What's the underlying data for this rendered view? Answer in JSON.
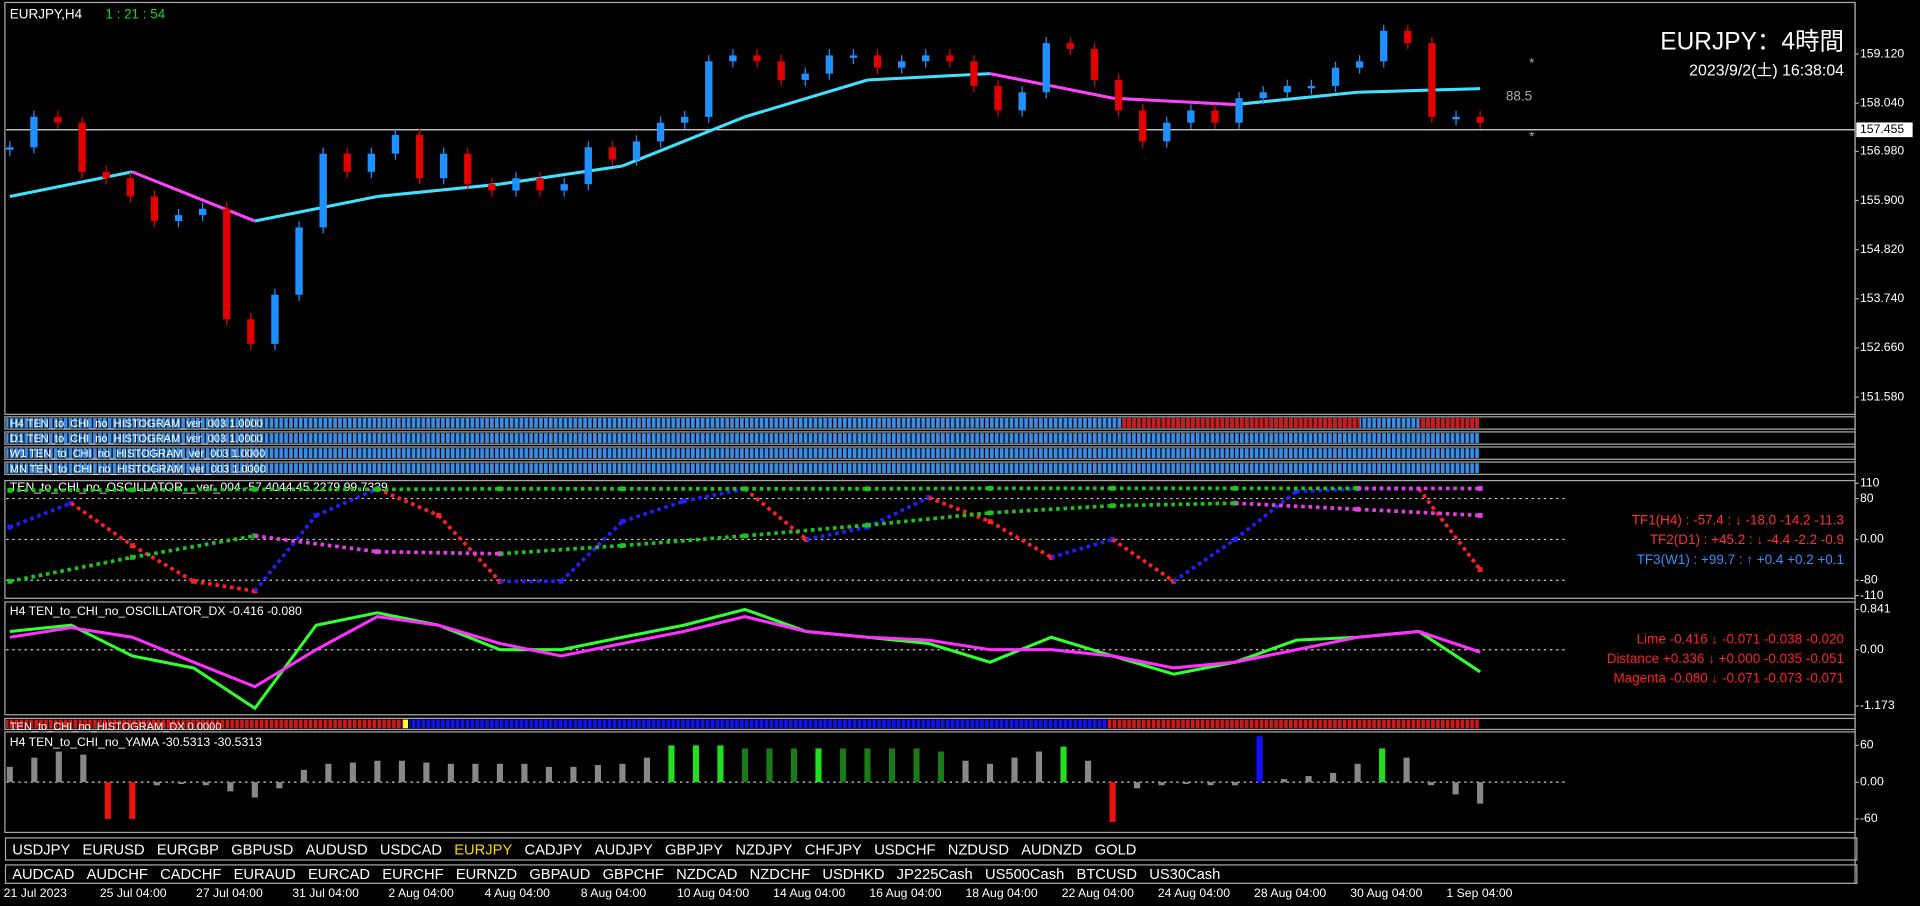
{
  "header": {
    "symbol": "EURJPY,H4",
    "timer": "1 : 21 : 54",
    "title": "EURJPY：4時間",
    "datetime": "2023/9/2(土) 16:38:04"
  },
  "price_chart": {
    "ylim": [
      151.2,
      160.2
    ],
    "yticks": [
      {
        "value": 159.12,
        "label": "159.120"
      },
      {
        "value": 158.04,
        "label": "158.040"
      },
      {
        "value": 156.98,
        "label": "156.980"
      },
      {
        "value": 155.9,
        "label": "155.900"
      },
      {
        "value": 154.82,
        "label": "154.820"
      },
      {
        "value": 153.74,
        "label": "153.740"
      },
      {
        "value": 152.66,
        "label": "152.660"
      },
      {
        "value": 151.58,
        "label": "151.580"
      }
    ],
    "current": {
      "value": 157.455,
      "label": "157.455"
    },
    "annotations": [
      "88.5",
      "*",
      "*"
    ],
    "candle_colors": {
      "up": "#1e90ff",
      "down": "#e00000"
    },
    "closes": [
      157.07,
      157.74,
      157.61,
      156.53,
      156.39,
      155.99,
      155.45,
      155.58,
      155.72,
      153.29,
      152.75,
      153.83,
      155.31,
      156.93,
      156.53,
      156.93,
      157.34,
      156.39,
      156.93,
      156.26,
      156.12,
      156.39,
      156.12,
      156.26,
      157.07,
      156.8,
      157.2,
      157.61,
      157.74,
      158.96,
      159.09,
      158.96,
      158.55,
      158.69,
      159.09,
      159.09,
      158.82,
      158.96,
      159.09,
      158.96,
      158.42,
      157.88,
      158.28,
      159.36,
      159.23,
      158.55,
      157.88,
      157.2,
      157.61,
      157.88,
      157.61,
      158.15,
      158.28,
      158.42,
      158.42,
      158.82,
      158.96,
      159.63,
      159.36,
      157.74,
      157.74,
      157.61
    ],
    "ma": {
      "colors": {
        "rise": "#40e0ff",
        "fall": "#ff40ff"
      },
      "values": [
        155.99,
        156.53,
        155.45,
        155.99,
        156.26,
        156.66,
        157.74,
        158.55,
        158.69,
        158.15,
        158.01,
        158.28,
        158.36
      ]
    }
  },
  "histograms": [
    "H4 TEN_to_CHI_no_HISTOGRAM_ver_003 1.0000",
    "D1 TEN_to_CHI_no_HISTOGRAM_ver_003 1.0000",
    "W1 TEN_to_CHI_no_HISTOGRAM_ver_003 1.0000",
    "MN TEN_to_CHI_no_HISTOGRAM_ver_003 1.0000"
  ],
  "oscillator": {
    "label": "TEN_to_CHI_no_OSCILLATOR__ver_004 -57.4044 45.2279 99.7339",
    "ylim": [
      -120,
      120
    ],
    "yticks": [
      110,
      80,
      {
        "value": 0,
        "label": "0.00"
      },
      -80,
      -110
    ],
    "series": [
      {
        "colors": {
          "rise": "#2020ff",
          "fall": "#ff2020"
        },
        "values": [
          24,
          71,
          -12,
          -82,
          -101,
          47,
          99,
          47,
          -82,
          -82,
          35,
          75,
          99,
          0,
          24,
          82,
          35,
          -35,
          0,
          -82,
          0,
          94,
          99,
          99,
          -59
        ]
      },
      {
        "colors": {
          "rise": "#20c020",
          "fall": "#e040e0"
        },
        "values": [
          -82,
          -35,
          7,
          -24,
          -28,
          -12,
          7,
          28,
          52,
          66,
          71,
          59,
          47
        ]
      },
      {
        "colors": {
          "rise": "#20c020",
          "fall": "#e040e0"
        },
        "values": [
          96,
          97,
          98,
          98,
          99,
          99,
          99,
          99,
          100,
          100,
          100,
          100,
          99.7
        ]
      }
    ],
    "legend": [
      {
        "text": "TF1(H4) : -57.4 : ↓ -18.0 -14.2 -11.3",
        "color": "#ff3030"
      },
      {
        "text": "TF2(D1) : +45.2 : ↓ -4.4 -2.2 -0.9",
        "color": "#ff3030"
      },
      {
        "text": "TF3(W1) : +99.7 : ↑ +0.4 +0.2 +0.1",
        "color": "#3090ff"
      }
    ]
  },
  "oscillator_dx": {
    "label": "H4 TEN_to_CHI_no_OSCILLATOR_DX -0.416 -0.080",
    "ylim": [
      -1.33,
      0.97
    ],
    "yticks": [
      0.841,
      {
        "value": 0,
        "label": "0.00"
      },
      -1.173
    ],
    "series": [
      {
        "name": "Lime",
        "color": "#30ff30",
        "values": [
          0.38,
          0.51,
          -0.13,
          -0.38,
          -1.22,
          0.51,
          0.77,
          0.51,
          0,
          0,
          0.26,
          0.51,
          0.84,
          0.38,
          0.26,
          0.13,
          -0.26,
          0.26,
          -0.13,
          -0.51,
          -0.26,
          0.2,
          0.26,
          0.38,
          -0.46
        ]
      },
      {
        "name": "Magenta",
        "color": "#ff30ff",
        "values": [
          0.26,
          0.46,
          0.26,
          -0.26,
          -0.77,
          0,
          0.69,
          0.51,
          0.13,
          -0.13,
          0.13,
          0.38,
          0.69,
          0.38,
          0.26,
          0.2,
          0,
          0,
          -0.13,
          -0.38,
          -0.26,
          0,
          0.26,
          0.38,
          -0.05
        ]
      }
    ],
    "legend": [
      "Lime -0.416 ↓ -0.071 -0.038 -0.020",
      "Distance +0.336 ↓ +0.000 -0.035 -0.051",
      "Magenta -0.080 ↓ -0.071 -0.073 -0.071"
    ],
    "legend_color": "#ff2020"
  },
  "histogram_dx": "TEN_to_CHI_no_HISTOGRAM_DX 0.0000",
  "yama": {
    "label": "H4  TEN_to_CHI_no_YAMA -30.5313 -30.5313",
    "ylim": [
      -80,
      80
    ],
    "yticks": [
      60,
      {
        "value": 0,
        "label": "0.00"
      },
      -60
    ],
    "values": [
      25,
      40,
      50,
      45,
      -60,
      -60,
      -5,
      -3,
      -5,
      -15,
      -25,
      -10,
      20,
      30,
      32,
      35,
      35,
      32,
      30,
      30,
      30,
      30,
      25,
      25,
      28,
      30,
      40,
      60,
      60,
      60,
      55,
      55,
      55,
      55,
      55,
      55,
      55,
      55,
      50,
      35,
      30,
      40,
      50,
      58,
      35,
      -65,
      -10,
      -5,
      -3,
      -5,
      -5,
      75,
      5,
      10,
      15,
      30,
      55,
      40,
      -5,
      -20,
      -35
    ],
    "colors": [
      "#888",
      "#888",
      "#888",
      "#888",
      "#f01010",
      "#f01010",
      "#888",
      "#888",
      "#888",
      "#888",
      "#888",
      "#888",
      "#888",
      "#888",
      "#888",
      "#888",
      "#888",
      "#888",
      "#888",
      "#888",
      "#888",
      "#888",
      "#888",
      "#888",
      "#888",
      "#888",
      "#888",
      "#20e020",
      "#20e020",
      "#20e020",
      "#1a7a1a",
      "#1a7a1a",
      "#1a7a1a",
      "#20e020",
      "#1a7a1a",
      "#1a7a1a",
      "#1a7a1a",
      "#1a7a1a",
      "#1a7a1a",
      "#888",
      "#888",
      "#888",
      "#888",
      "#20e020",
      "#888",
      "#f01010",
      "#888",
      "#888",
      "#888",
      "#888",
      "#888",
      "#1010ff",
      "#888",
      "#888",
      "#888",
      "#888",
      "#20e020",
      "#888",
      "#888",
      "#888",
      "#888"
    ]
  },
  "symbols_row1": [
    "USDJPY",
    "EURUSD",
    "EURGBP",
    "GBPUSD",
    "AUDUSD",
    "USDCAD",
    "EURJPY",
    "CADJPY",
    "AUDJPY",
    "GBPJPY",
    "NZDJPY",
    "CHFJPY",
    "USDCHF",
    "NZDUSD",
    "AUDNZD",
    "GOLD"
  ],
  "active_symbol": "EURJPY",
  "symbols_row2": [
    "AUDCAD",
    "AUDCHF",
    "CADCHF",
    "EURAUD",
    "EURCAD",
    "EURCHF",
    "EURNZD",
    "GBPAUD",
    "GBPCHF",
    "NZDCAD",
    "NZDCHF",
    "USDHKD",
    "JP225Cash",
    "US500Cash",
    "BTCUSD",
    "US30Cash"
  ],
  "time_axis": [
    "21 Jul 2023",
    "25 Jul 04:00",
    "27 Jul 04:00",
    "31 Jul 04:00",
    "2 Aug 04:00",
    "4 Aug 04:00",
    "8 Aug 04:00",
    "10 Aug 04:00",
    "14 Aug 04:00",
    "16 Aug 04:00",
    "18 Aug 04:00",
    "22 Aug 04:00",
    "24 Aug 04:00",
    "28 Aug 04:00",
    "30 Aug 04:00",
    "1 Sep 04:00"
  ]
}
